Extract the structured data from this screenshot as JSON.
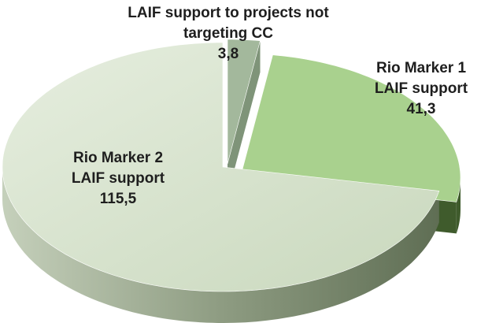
{
  "chart_data": {
    "type": "pie",
    "categories": [
      "LAIF support to projects not targeting CC",
      "Rio Marker 1 LAIF support",
      "Rio Marker 2 LAIF support"
    ],
    "values": [
      3.8,
      41.3,
      115.5
    ],
    "value_labels": [
      "3,8",
      "41,3",
      "115,5"
    ],
    "colors": [
      "#a3b89c",
      "#a9d18e",
      "#dde8d5"
    ]
  }
}
